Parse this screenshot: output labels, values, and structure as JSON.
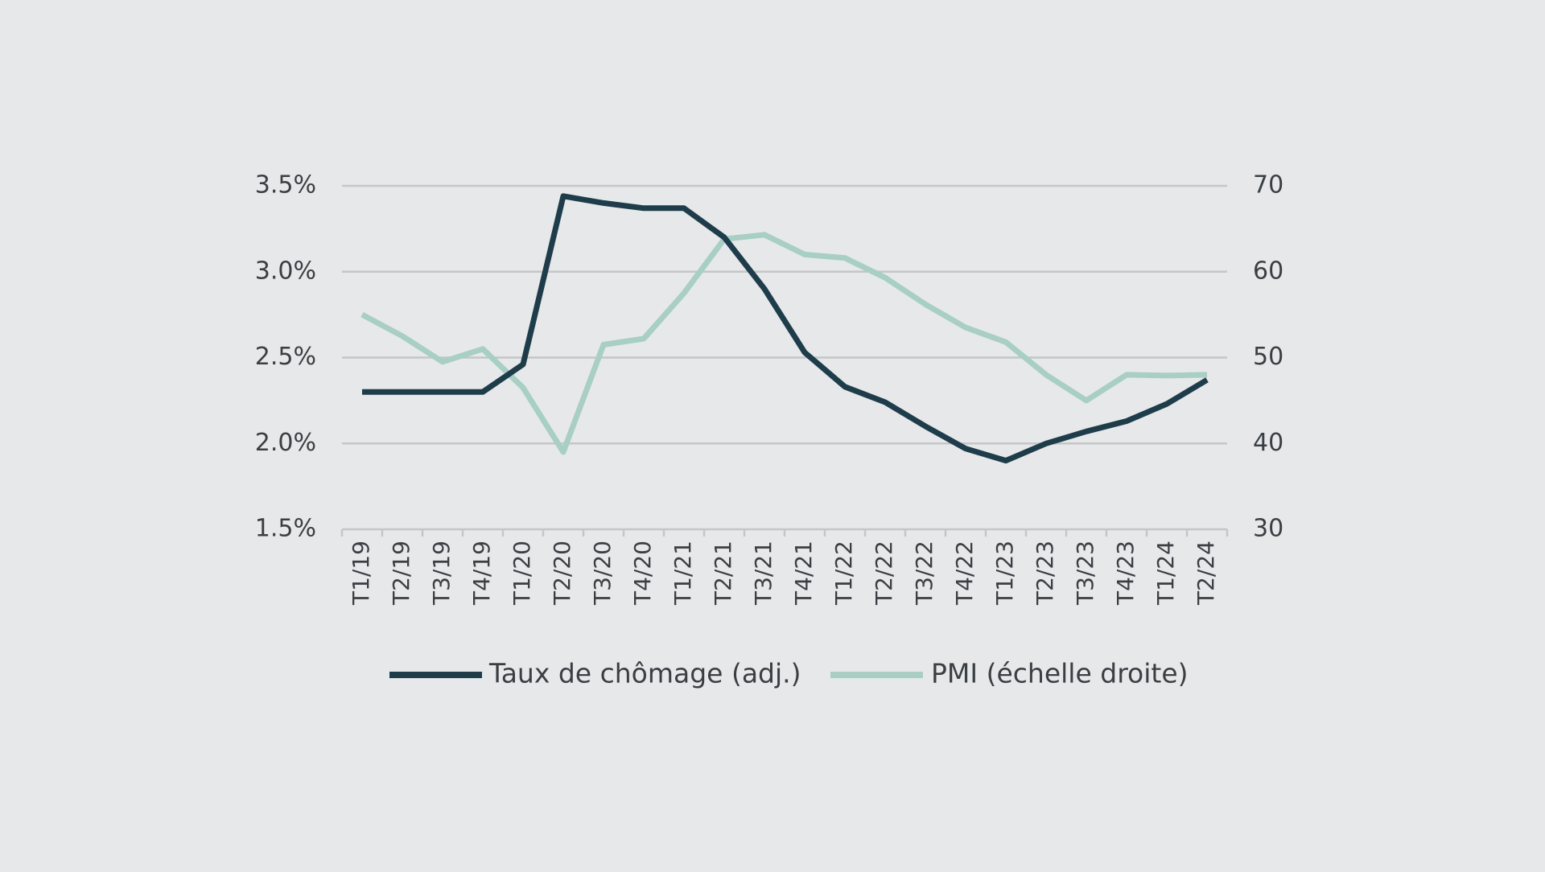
{
  "chart_data": {
    "type": "line",
    "categories": [
      "T1/19",
      "T2/19",
      "T3/19",
      "T4/19",
      "T1/20",
      "T2/20",
      "T3/20",
      "T4/20",
      "T1/21",
      "T2/21",
      "T3/21",
      "T4/21",
      "T1/22",
      "T2/22",
      "T3/22",
      "T4/22",
      "T1/23",
      "T2/23",
      "T3/23",
      "T4/23",
      "T1/24",
      "T2/24"
    ],
    "series": [
      {
        "name": "Taux de chômage (adj.)",
        "axis": "left",
        "color": "#1d3d4a",
        "values": [
          2.3,
          2.3,
          2.3,
          2.3,
          2.46,
          3.44,
          3.4,
          3.37,
          3.37,
          3.2,
          2.9,
          2.53,
          2.33,
          2.24,
          2.1,
          1.97,
          1.9,
          2.0,
          2.07,
          2.13,
          2.23,
          2.37
        ]
      },
      {
        "name": "PMI (échelle droite)",
        "axis": "right",
        "color": "#a7cfc3",
        "values": [
          55,
          52.5,
          49.5,
          51,
          46.5,
          39,
          51.5,
          52.2,
          57.5,
          63.8,
          64.3,
          62,
          61.6,
          59.3,
          56.2,
          53.5,
          51.8,
          48,
          45,
          48,
          47.9,
          48
        ]
      }
    ],
    "y_left": {
      "min": 1.5,
      "max": 3.5,
      "ticks": [
        1.5,
        2.0,
        2.5,
        3.0,
        3.5
      ],
      "tick_labels": [
        "1.5%",
        "2.0%",
        "2.5%",
        "3.0%",
        "3.5%"
      ]
    },
    "y_right": {
      "min": 30,
      "max": 70,
      "ticks": [
        30,
        40,
        50,
        60,
        70
      ],
      "tick_labels": [
        "30",
        "40",
        "50",
        "60",
        "70"
      ]
    },
    "grid": true,
    "legend_position": "bottom-center"
  }
}
